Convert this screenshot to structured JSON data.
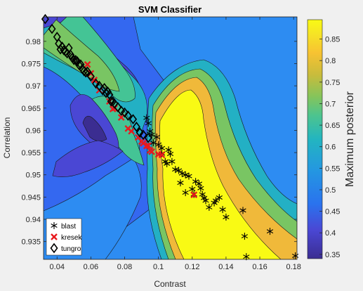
{
  "chart_data": {
    "type": "scatter",
    "title": "SVM Classifier",
    "xlabel": "Contrast",
    "ylabel": "Correlation",
    "xlim": [
      0.032,
      0.182
    ],
    "ylim": [
      0.931,
      0.9855
    ],
    "xticks": [
      0.04,
      0.06,
      0.08,
      0.1,
      0.12,
      0.14,
      0.16,
      0.18
    ],
    "xtick_labels": [
      "0.04",
      "0.06",
      "0.08",
      "0.1",
      "0.12",
      "0.14",
      "0.16",
      "0.18"
    ],
    "yticks": [
      0.935,
      0.94,
      0.945,
      0.95,
      0.955,
      0.96,
      0.965,
      0.97,
      0.975,
      0.98
    ],
    "ytick_labels": [
      "0.935",
      "0.94",
      "0.945",
      "0.95",
      "0.955",
      "0.96",
      "0.965",
      "0.97",
      "0.975",
      "0.98"
    ],
    "background": "filled contour map of maximum posterior",
    "colorbar": {
      "label": "Maximum posterior",
      "range": [
        0.34,
        0.895
      ],
      "ticks": [
        0.35,
        0.4,
        0.45,
        0.5,
        0.55,
        0.6,
        0.65,
        0.7,
        0.75,
        0.8,
        0.85
      ],
      "tick_labels": [
        "0.35",
        "0.4",
        "0.45",
        "0.5",
        "0.55",
        "0.6",
        "0.65",
        "0.7",
        "0.75",
        "0.8",
        "0.85"
      ],
      "levels": [
        "#3b2d91",
        "#4a47d4",
        "#3468f0",
        "#2d8cf2",
        "#23b0c4",
        "#44c495",
        "#79c563",
        "#c3bc3e",
        "#f0b93a",
        "#f7dd25",
        "#f9fa14"
      ]
    },
    "legend": {
      "position": "bottom-left",
      "entries": [
        "blast",
        "kresek",
        "tungro"
      ]
    },
    "series": [
      {
        "name": "blast",
        "marker": "asterisk",
        "color": "#000000",
        "points": [
          [
            0.093,
            0.9628
          ],
          [
            0.094,
            0.9616
          ],
          [
            0.095,
            0.9598
          ],
          [
            0.096,
            0.959
          ],
          [
            0.097,
            0.9572
          ],
          [
            0.099,
            0.9585
          ],
          [
            0.1,
            0.9568
          ],
          [
            0.102,
            0.956
          ],
          [
            0.102,
            0.9548
          ],
          [
            0.104,
            0.953
          ],
          [
            0.105,
            0.9525
          ],
          [
            0.106,
            0.9556
          ],
          [
            0.107,
            0.9547
          ],
          [
            0.108,
            0.953
          ],
          [
            0.11,
            0.9512
          ],
          [
            0.112,
            0.951
          ],
          [
            0.113,
            0.9482
          ],
          [
            0.114,
            0.9503
          ],
          [
            0.116,
            0.95
          ],
          [
            0.116,
            0.946
          ],
          [
            0.118,
            0.9497
          ],
          [
            0.12,
            0.9468
          ],
          [
            0.121,
            0.9456
          ],
          [
            0.122,
            0.9485
          ],
          [
            0.124,
            0.948
          ],
          [
            0.125,
            0.947
          ],
          [
            0.126,
            0.9456
          ],
          [
            0.127,
            0.9448
          ],
          [
            0.128,
            0.9442
          ],
          [
            0.13,
            0.9427
          ],
          [
            0.133,
            0.9437
          ],
          [
            0.134,
            0.9442
          ],
          [
            0.136,
            0.9449
          ],
          [
            0.138,
            0.9422
          ],
          [
            0.14,
            0.9405
          ],
          [
            0.15,
            0.942
          ],
          [
            0.151,
            0.9362
          ],
          [
            0.152,
            0.9316
          ],
          [
            0.166,
            0.9373
          ],
          [
            0.181,
            0.9318
          ]
        ]
      },
      {
        "name": "kresek",
        "marker": "x",
        "color": "#e8191e",
        "points": [
          [
            0.058,
            0.9748
          ],
          [
            0.06,
            0.9728
          ],
          [
            0.062,
            0.9713
          ],
          [
            0.065,
            0.969
          ],
          [
            0.071,
            0.9665
          ],
          [
            0.073,
            0.9648
          ],
          [
            0.074,
            0.965
          ],
          [
            0.078,
            0.9629
          ],
          [
            0.082,
            0.9604
          ],
          [
            0.084,
            0.9598
          ],
          [
            0.088,
            0.9584
          ],
          [
            0.09,
            0.9575
          ],
          [
            0.091,
            0.9571
          ],
          [
            0.093,
            0.9565
          ],
          [
            0.094,
            0.9566
          ],
          [
            0.095,
            0.9555
          ],
          [
            0.096,
            0.9552
          ],
          [
            0.1,
            0.9546
          ],
          [
            0.102,
            0.9545
          ],
          [
            0.121,
            0.9455
          ]
        ]
      },
      {
        "name": "tungro",
        "marker": "diamond",
        "color": "#000000",
        "points": [
          [
            0.033,
            0.985
          ],
          [
            0.037,
            0.9828
          ],
          [
            0.04,
            0.981
          ],
          [
            0.041,
            0.9795
          ],
          [
            0.042,
            0.9782
          ],
          [
            0.043,
            0.9788
          ],
          [
            0.044,
            0.978
          ],
          [
            0.045,
            0.9777
          ],
          [
            0.046,
            0.9773
          ],
          [
            0.047,
            0.9785
          ],
          [
            0.048,
            0.977
          ],
          [
            0.049,
            0.9763
          ],
          [
            0.05,
            0.9758
          ],
          [
            0.051,
            0.9758
          ],
          [
            0.052,
            0.9755
          ],
          [
            0.053,
            0.9747
          ],
          [
            0.054,
            0.9748
          ],
          [
            0.055,
            0.9738
          ],
          [
            0.056,
            0.9733
          ],
          [
            0.057,
            0.973
          ],
          [
            0.058,
            0.9732
          ],
          [
            0.06,
            0.9721
          ],
          [
            0.063,
            0.9705
          ],
          [
            0.065,
            0.97
          ],
          [
            0.067,
            0.969
          ],
          [
            0.068,
            0.9695
          ],
          [
            0.069,
            0.9684
          ],
          [
            0.07,
            0.9687
          ],
          [
            0.071,
            0.968
          ],
          [
            0.072,
            0.9665
          ],
          [
            0.073,
            0.9665
          ],
          [
            0.074,
            0.966
          ],
          [
            0.076,
            0.9652
          ],
          [
            0.078,
            0.9644
          ],
          [
            0.08,
            0.964
          ],
          [
            0.082,
            0.9633
          ],
          [
            0.085,
            0.9625
          ],
          [
            0.087,
            0.9608
          ],
          [
            0.089,
            0.9595
          ],
          [
            0.091,
            0.959
          ],
          [
            0.094,
            0.9583
          ]
        ]
      }
    ]
  }
}
